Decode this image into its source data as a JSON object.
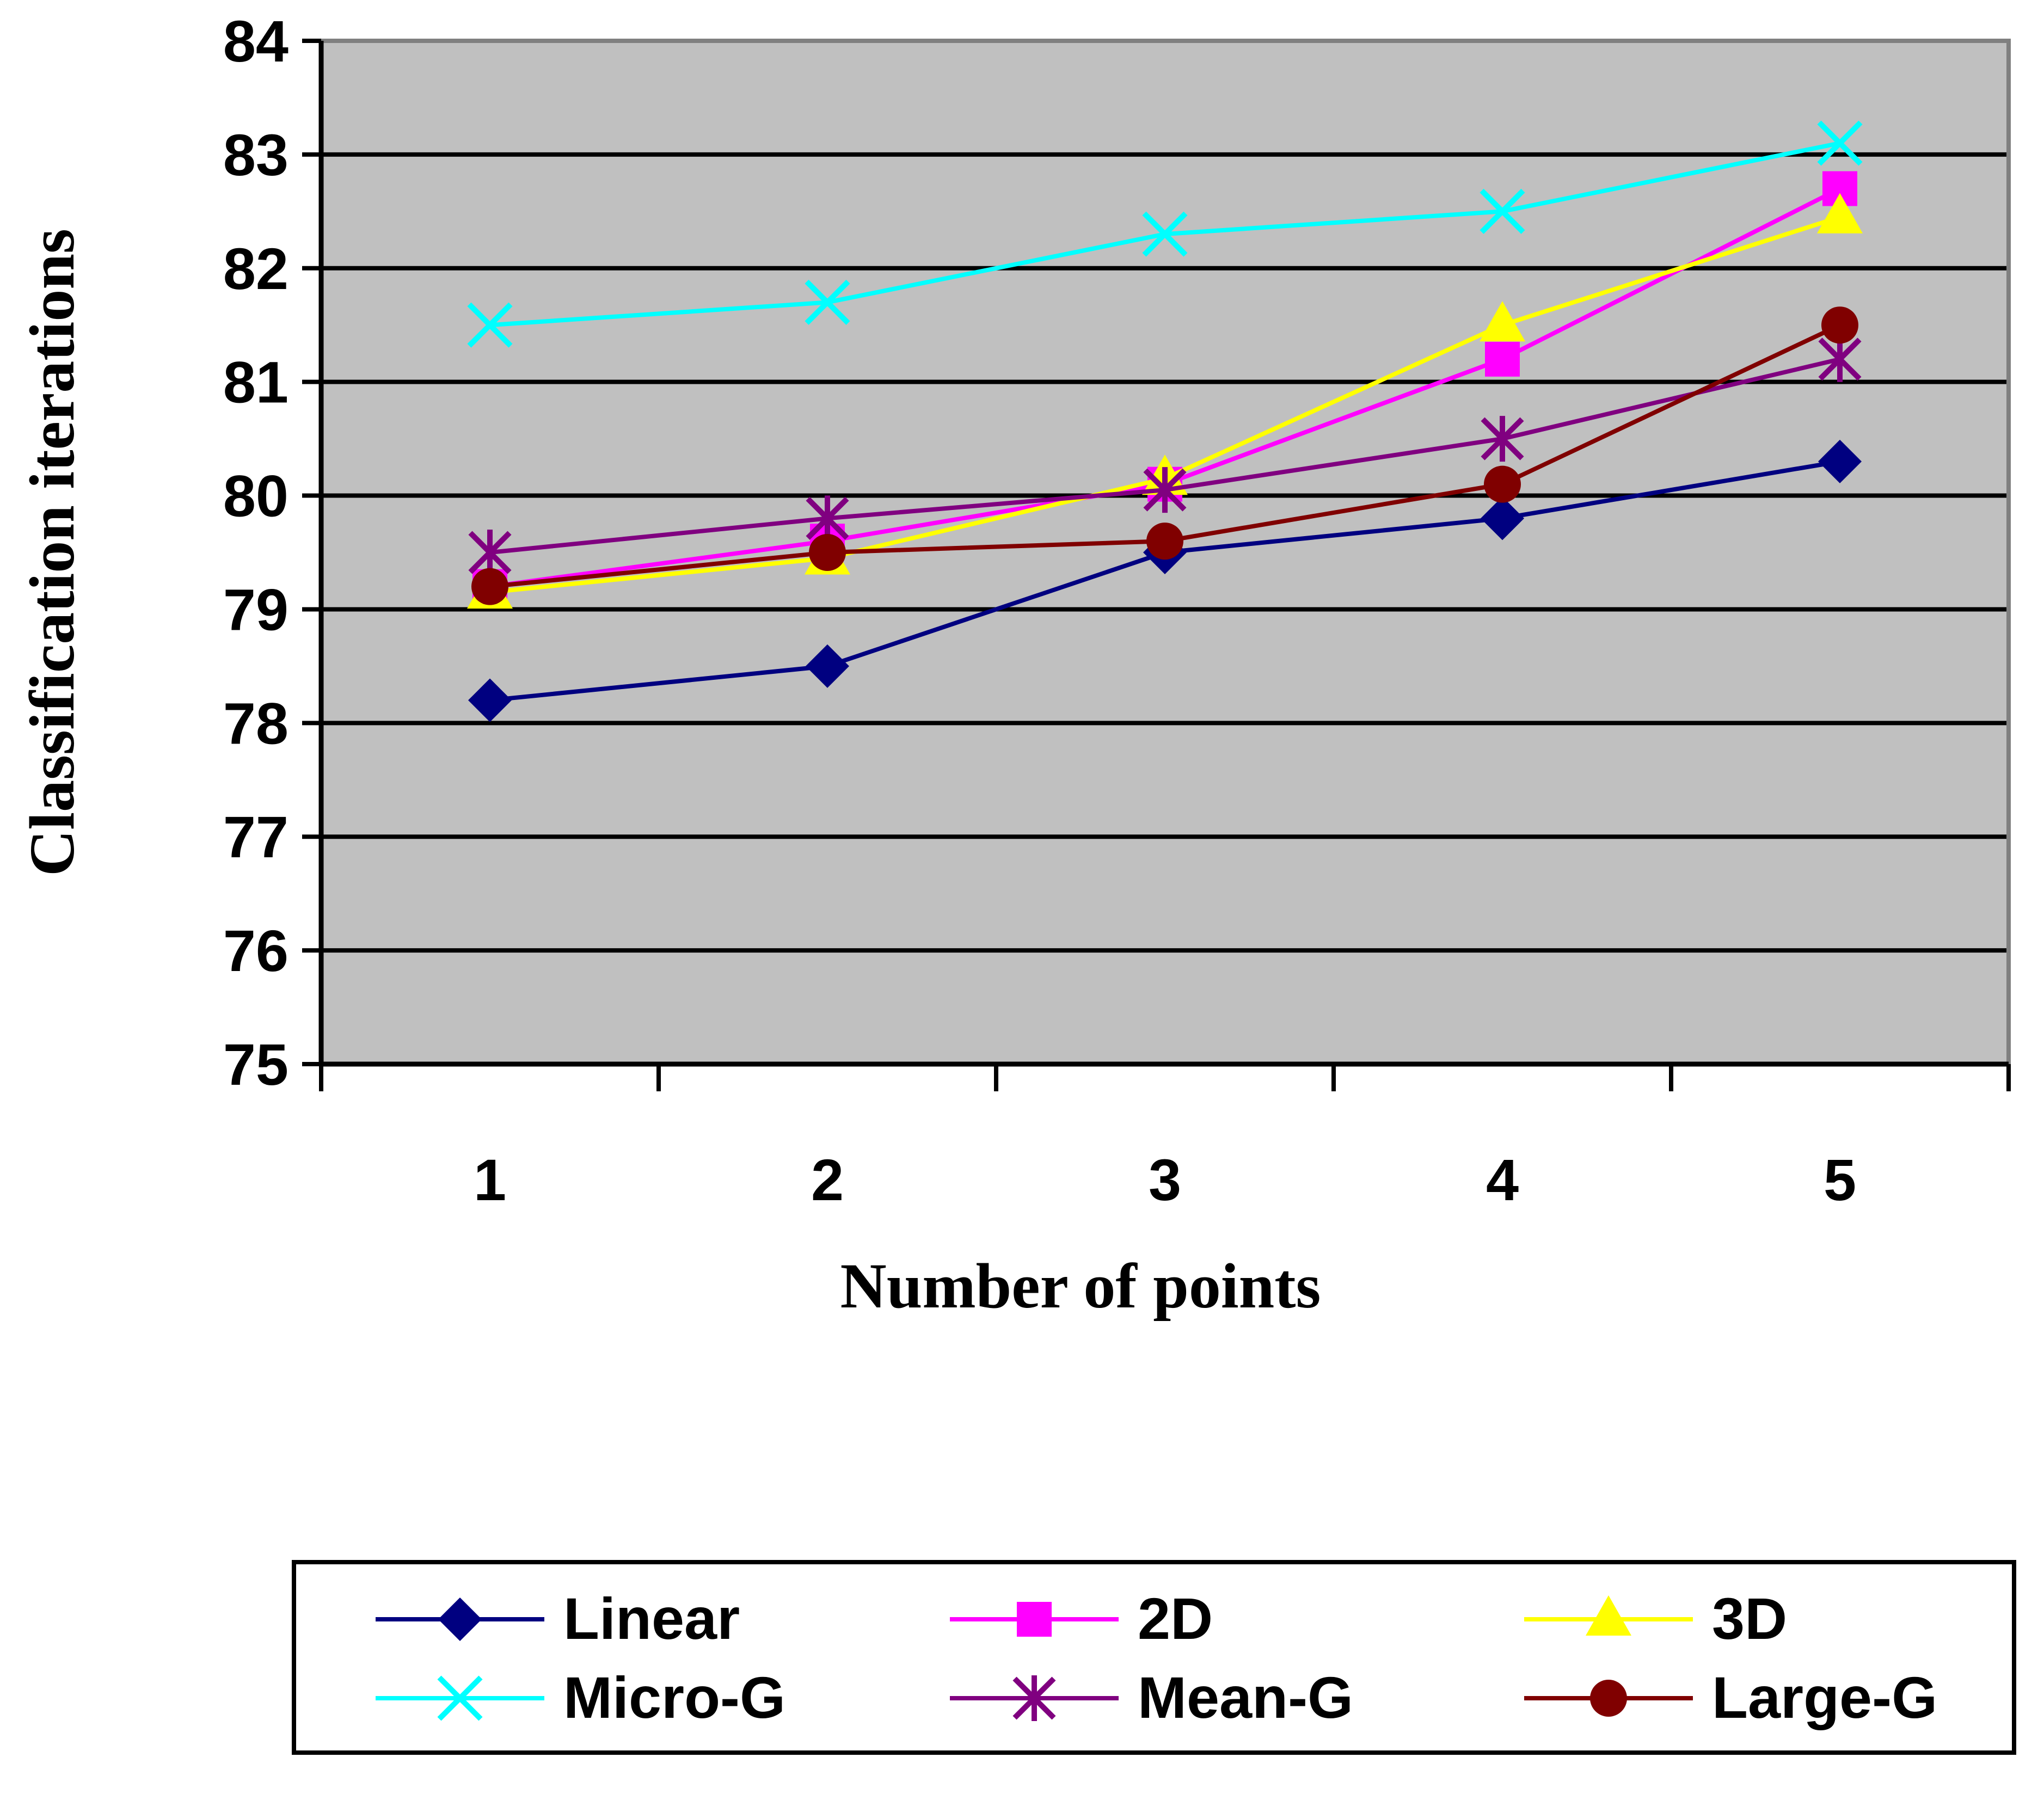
{
  "chart_data": {
    "type": "line",
    "title": "",
    "xlabel": "Number of points",
    "ylabel": "Classification iterations",
    "categories": [
      "1",
      "2",
      "3",
      "4",
      "5"
    ],
    "yticks": [
      "75",
      "76",
      "77",
      "78",
      "79",
      "80",
      "81",
      "82",
      "83",
      "84"
    ],
    "ylim": [
      75,
      84
    ],
    "grid": true,
    "legend_position": "bottom",
    "plot_background": "#c0c0c0",
    "series": [
      {
        "name": "Linear",
        "color": "#000080",
        "marker": "diamond",
        "values": [
          78.2,
          78.5,
          79.5,
          79.8,
          80.3
        ]
      },
      {
        "name": "2D",
        "color": "#ff00ff",
        "marker": "square",
        "values": [
          79.2,
          79.6,
          80.1,
          81.2,
          82.7
        ]
      },
      {
        "name": "3D",
        "color": "#ffff00",
        "marker": "triangle",
        "values": [
          79.15,
          79.45,
          80.15,
          81.5,
          82.45
        ]
      },
      {
        "name": "Micro-G",
        "color": "#00ffff",
        "marker": "x",
        "values": [
          81.5,
          81.7,
          82.3,
          82.5,
          83.1
        ]
      },
      {
        "name": "Mean-G",
        "color": "#800080",
        "marker": "asterisk",
        "values": [
          79.5,
          79.8,
          80.05,
          80.5,
          81.2
        ]
      },
      {
        "name": "Large-G",
        "color": "#800000",
        "marker": "circle",
        "values": [
          79.2,
          79.5,
          79.6,
          80.1,
          81.5
        ]
      }
    ]
  }
}
